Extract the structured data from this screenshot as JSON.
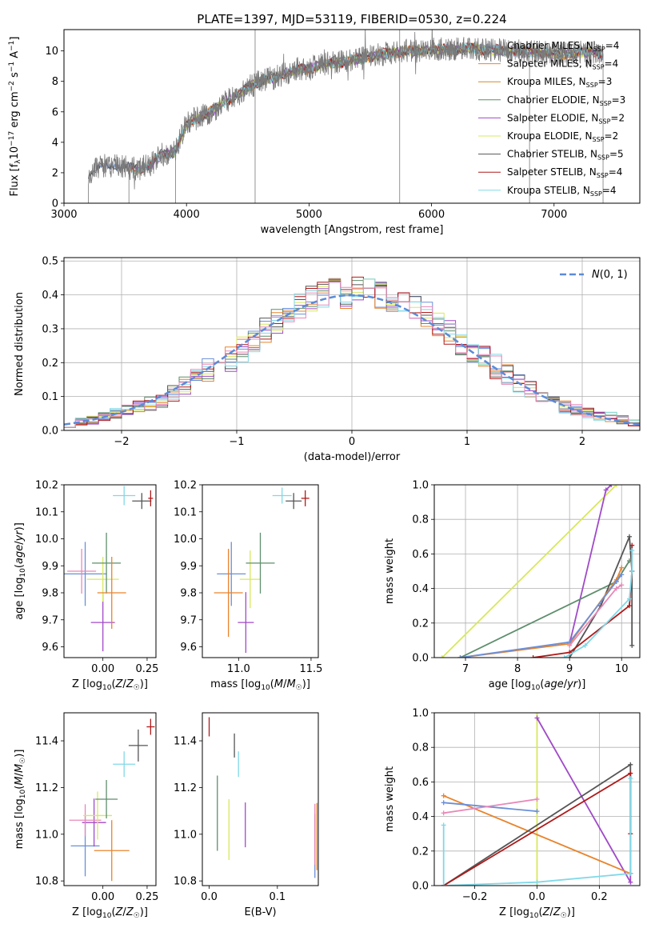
{
  "chart_data": [
    {
      "type": "line",
      "title": "PLATE=1397, MJD=53119, FIBERID=0530, z=0.224",
      "xlabel": "wavelength [Angstrom, rest frame]",
      "ylabel": "Flux [f_λ 10^-17 erg cm^-2 s^-1 A^-1]",
      "xlim": [
        3000,
        7700
      ],
      "ylim": [
        0,
        11.4
      ],
      "xticks": [
        "3000",
        "4000",
        "5000",
        "6000",
        "7000"
      ],
      "yticks": [
        "0",
        "2",
        "4",
        "6",
        "8",
        "10"
      ],
      "legend_position": "top-right",
      "x": [
        3200,
        3300,
        3400,
        3500,
        3600,
        3700,
        3800,
        3900,
        4000,
        4100,
        4200,
        4300,
        4400,
        4500,
        4600,
        4700,
        4800,
        4900,
        5000,
        5100,
        5200,
        5300,
        5400,
        5500,
        5600,
        5700,
        5800,
        5900,
        6000,
        6100,
        6200,
        6300,
        6400,
        6500,
        6600,
        6700,
        6800,
        6900,
        7000,
        7100,
        7200,
        7300,
        7400
      ],
      "y": [
        2.0,
        2.4,
        2.5,
        2.4,
        2.2,
        2.5,
        3.2,
        3.3,
        5.2,
        5.6,
        6.0,
        6.6,
        7.0,
        7.6,
        8.0,
        8.2,
        8.5,
        8.8,
        8.8,
        9.1,
        9.2,
        9.3,
        9.5,
        9.6,
        9.8,
        9.9,
        10.0,
        10.0,
        10.1,
        10.1,
        10.1,
        10.2,
        10.1,
        10.1,
        10.0,
        10.0,
        9.9,
        9.9,
        9.8,
        9.8,
        9.9,
        9.9,
        9.8
      ],
      "series": [
        {
          "name": "Chabrier MILES, N_SSP=4",
          "label_main": "Chabrier MILES, N",
          "label_sub": "SSP",
          "label_end": "=4",
          "color": "#6a8fd8"
        },
        {
          "name": "Salpeter MILES, N_SSP=4",
          "label_main": "Salpeter MILES, N",
          "label_sub": "SSP",
          "label_end": "=4",
          "color": "#e8842c"
        },
        {
          "name": "Kroupa MILES, N_SSP=3",
          "label_main": "Kroupa MILES, N",
          "label_sub": "SSP",
          "label_end": "=3",
          "color": "#d48a2c"
        },
        {
          "name": "Chabrier ELODIE, N_SSP=3",
          "label_main": "Chabrier ELODIE, N",
          "label_sub": "SSP",
          "label_end": "=3",
          "color": "#5e8e6c"
        },
        {
          "name": "Salpeter ELODIE, N_SSP=2",
          "label_main": "Salpeter ELODIE, N",
          "label_sub": "SSP",
          "label_end": "=2",
          "color": "#a04ac8"
        },
        {
          "name": "Kroupa ELODIE, N_SSP=2",
          "label_main": "Kroupa ELODIE, N",
          "label_sub": "SSP",
          "label_end": "=2",
          "color": "#d8e85c"
        },
        {
          "name": "Chabrier STELIB, N_SSP=5",
          "label_main": "Chabrier STELIB, N",
          "label_sub": "SSP",
          "label_end": "=5",
          "color": "#555555"
        },
        {
          "name": "Salpeter STELIB, N_SSP=4",
          "label_main": "Salpeter STELIB, N",
          "label_sub": "SSP",
          "label_end": "=4",
          "color": "#b01a1a"
        },
        {
          "name": "Kroupa STELIB, N_SSP=4",
          "label_main": "Kroupa STELIB, N",
          "label_sub": "SSP",
          "label_end": "=4",
          "color": "#80d8e8"
        }
      ]
    },
    {
      "type": "bar",
      "xlabel": "(data-model)/error",
      "ylabel": "Normed distribution",
      "xlim": [
        -2.5,
        2.5
      ],
      "ylim": [
        0,
        0.51
      ],
      "xticks": [
        "−2",
        "−1",
        "0",
        "1",
        "2"
      ],
      "yticks": [
        "0.0",
        "0.1",
        "0.2",
        "0.3",
        "0.4",
        "0.5"
      ],
      "grid": true,
      "legend_position": "top-right",
      "legend": "N(0,1)",
      "bin_edges": [
        -2.5,
        -2.4,
        -2.3,
        -2.2,
        -2.1,
        -2.0,
        -1.9,
        -1.8,
        -1.7,
        -1.6,
        -1.5,
        -1.4,
        -1.3,
        -1.2,
        -1.1,
        -1.0,
        -0.9,
        -0.8,
        -0.7,
        -0.6,
        -0.5,
        -0.4,
        -0.3,
        -0.2,
        -0.1,
        0.0,
        0.1,
        0.2,
        0.3,
        0.4,
        0.5,
        0.6,
        0.7,
        0.8,
        0.9,
        1.0,
        1.1,
        1.2,
        1.3,
        1.4,
        1.5,
        1.6,
        1.7,
        1.8,
        1.9,
        2.0,
        2.1,
        2.2,
        2.3,
        2.4,
        2.5
      ],
      "histogram_base": [
        0.02,
        0.025,
        0.03,
        0.04,
        0.05,
        0.06,
        0.07,
        0.08,
        0.09,
        0.11,
        0.13,
        0.15,
        0.18,
        0.2,
        0.21,
        0.24,
        0.27,
        0.3,
        0.32,
        0.34,
        0.37,
        0.39,
        0.4,
        0.41,
        0.4,
        0.42,
        0.41,
        0.4,
        0.39,
        0.38,
        0.36,
        0.34,
        0.31,
        0.29,
        0.26,
        0.23,
        0.21,
        0.19,
        0.17,
        0.14,
        0.12,
        0.1,
        0.08,
        0.07,
        0.06,
        0.05,
        0.045,
        0.04,
        0.03,
        0.025
      ]
    },
    {
      "type": "scatter",
      "xlabel": "Z [log10(Z/Z☉)]",
      "ylabel": "age [log10(age/yr)]",
      "xlim": [
        -0.22,
        0.3
      ],
      "ylim": [
        9.56,
        10.2
      ],
      "xticks": [
        "0.00",
        "0.25"
      ],
      "yticks": [
        "9.6",
        "9.7",
        "9.8",
        "9.9",
        "10.0",
        "10.1",
        "10.2"
      ],
      "points": [
        {
          "x": -0.1,
          "y": 9.87,
          "color": "#6a8fd8"
        },
        {
          "x": -0.12,
          "y": 9.88,
          "color": "#e888b8"
        },
        {
          "x": 0.0,
          "y": 9.69,
          "color": "#a04ac8"
        },
        {
          "x": 0.0,
          "y": 9.85,
          "color": "#d8e85c"
        },
        {
          "x": 0.02,
          "y": 9.91,
          "color": "#5e8e6c"
        },
        {
          "x": 0.05,
          "y": 9.8,
          "color": "#e8842c"
        },
        {
          "x": 0.12,
          "y": 10.16,
          "color": "#80d8e8"
        },
        {
          "x": 0.22,
          "y": 10.14,
          "color": "#555555"
        },
        {
          "x": 0.27,
          "y": 10.15,
          "color": "#b01a1a"
        }
      ]
    },
    {
      "type": "scatter",
      "xlabel": "mass [log10(M/M☉)]",
      "ylabel": "",
      "xlim": [
        10.75,
        11.55
      ],
      "ylim": [
        9.56,
        10.2
      ],
      "xticks": [
        "11.0",
        "11.5"
      ],
      "yticks": [
        "9.6",
        "9.7",
        "9.8",
        "9.9",
        "10.0",
        "10.1",
        "10.2"
      ],
      "points": [
        {
          "x": 10.95,
          "y": 9.87,
          "color": "#6a8fd8"
        },
        {
          "x": 10.93,
          "y": 9.8,
          "color": "#e8842c"
        },
        {
          "x": 11.05,
          "y": 9.69,
          "color": "#a04ac8"
        },
        {
          "x": 11.08,
          "y": 9.85,
          "color": "#d8e85c"
        },
        {
          "x": 11.15,
          "y": 9.91,
          "color": "#5e8e6c"
        },
        {
          "x": 11.3,
          "y": 10.16,
          "color": "#80d8e8"
        },
        {
          "x": 11.38,
          "y": 10.14,
          "color": "#555555"
        },
        {
          "x": 11.46,
          "y": 10.15,
          "color": "#b01a1a"
        }
      ]
    },
    {
      "type": "line",
      "xlabel": "age [log10(age/yr)]",
      "ylabel": "mass weight",
      "xlim": [
        6.4,
        10.35
      ],
      "ylim": [
        0,
        1.0
      ],
      "xticks": [
        "7",
        "8",
        "9",
        "10"
      ],
      "yticks": [
        "0.0",
        "0.2",
        "0.4",
        "0.6",
        "0.8",
        "1.0"
      ],
      "grid": true,
      "series": [
        {
          "color": "#d8e85c",
          "x": [
            6.55,
            9.9
          ],
          "y": [
            0.0,
            1.0
          ]
        },
        {
          "color": "#a04ac8",
          "x": [
            9.0,
            9.7,
            9.8
          ],
          "y": [
            0.08,
            0.97,
            1.0
          ]
        },
        {
          "color": "#5e8e6c",
          "x": [
            6.9,
            9.9,
            10.15
          ],
          "y": [
            0.0,
            0.44,
            0.56
          ]
        },
        {
          "color": "#555555",
          "x": [
            9.0,
            9.6,
            10.15,
            10.2,
            10.2
          ],
          "y": [
            0.0,
            0.3,
            0.7,
            0.5,
            0.07
          ]
        },
        {
          "color": "#e8842c",
          "x": [
            6.9,
            9.0,
            9.9,
            10.0
          ],
          "y": [
            0.0,
            0.08,
            0.45,
            0.52
          ]
        },
        {
          "color": "#6a8fd8",
          "x": [
            6.9,
            9.0,
            9.9,
            10.0
          ],
          "y": [
            0.0,
            0.09,
            0.44,
            0.48
          ]
        },
        {
          "color": "#e888b8",
          "x": [
            9.0,
            9.9,
            10.0
          ],
          "y": [
            0.07,
            0.4,
            0.42
          ]
        },
        {
          "color": "#b01a1a",
          "x": [
            8.3,
            9.0,
            10.15,
            10.2,
            10.2
          ],
          "y": [
            0.0,
            0.03,
            0.3,
            0.5,
            0.65
          ]
        },
        {
          "color": "#80d8e8",
          "x": [
            8.9,
            9.3,
            10.15,
            10.2,
            10.2
          ],
          "y": [
            0.0,
            0.07,
            0.34,
            0.5,
            0.62
          ]
        }
      ]
    },
    {
      "type": "scatter",
      "xlabel": "Z [log10(Z/Z☉)]",
      "ylabel": "mass [log10(M/M☉)]",
      "xlim": [
        -0.22,
        0.3
      ],
      "ylim": [
        10.78,
        11.52
      ],
      "xticks": [
        "0.00",
        "0.25"
      ],
      "yticks": [
        "10.8",
        "11.0",
        "11.2",
        "11.4"
      ],
      "points": [
        {
          "x": -0.1,
          "y": 10.95,
          "color": "#6a8fd8"
        },
        {
          "x": 0.05,
          "y": 10.93,
          "color": "#e8842c"
        },
        {
          "x": -0.05,
          "y": 11.05,
          "color": "#a04ac8"
        },
        {
          "x": -0.1,
          "y": 11.06,
          "color": "#e888b8"
        },
        {
          "x": -0.03,
          "y": 11.08,
          "color": "#d8e85c"
        },
        {
          "x": 0.02,
          "y": 11.15,
          "color": "#5e8e6c"
        },
        {
          "x": 0.12,
          "y": 11.3,
          "color": "#80d8e8"
        },
        {
          "x": 0.2,
          "y": 11.38,
          "color": "#555555"
        },
        {
          "x": 0.27,
          "y": 11.46,
          "color": "#b01a1a"
        }
      ]
    },
    {
      "type": "scatter",
      "xlabel": "E(B-V)",
      "ylabel": "",
      "xlim": [
        -0.01,
        0.16
      ],
      "ylim": [
        10.78,
        11.52
      ],
      "xticks": [
        "0.0",
        "0.1"
      ],
      "yticks": [
        "10.8",
        "11.0",
        "11.2",
        "11.4"
      ],
      "points": [
        {
          "x": 0.0,
          "y": 11.46,
          "color": "#b01a1a"
        },
        {
          "x": 0.037,
          "y": 11.38,
          "color": "#555555"
        },
        {
          "x": 0.043,
          "y": 11.3,
          "color": "#80d8e8"
        },
        {
          "x": 0.012,
          "y": 11.09,
          "color": "#5e8e6c"
        },
        {
          "x": 0.029,
          "y": 11.02,
          "color": "#d8e85c"
        },
        {
          "x": 0.053,
          "y": 11.04,
          "color": "#a04ac8"
        },
        {
          "x": 0.155,
          "y": 10.95,
          "color": "#6a8fd8"
        },
        {
          "x": 0.158,
          "y": 10.99,
          "color": "#e8842c"
        },
        {
          "x": 0.155,
          "y": 11.0,
          "color": "#e888b8"
        }
      ]
    },
    {
      "type": "line",
      "xlabel": "Z [log10(Z/Z☉)]",
      "ylabel": "mass weight",
      "xlim": [
        -0.33,
        0.33
      ],
      "ylim": [
        0,
        1.0
      ],
      "xticks": [
        "−0.2",
        "0.0",
        "0.2"
      ],
      "yticks": [
        "0.0",
        "0.2",
        "0.4",
        "0.6",
        "0.8",
        "1.0"
      ],
      "grid": true,
      "series": [
        {
          "color": "#d8e85c",
          "x": [
            0.0,
            0.0
          ],
          "y": [
            0.0,
            1.0
          ]
        },
        {
          "color": "#a04ac8",
          "x": [
            0.0,
            0.3,
            0.3
          ],
          "y": [
            0.97,
            0.02,
            0.07
          ]
        },
        {
          "color": "#e8842c",
          "x": [
            -0.3,
            0.3
          ],
          "y": [
            0.52,
            0.07
          ]
        },
        {
          "color": "#6a8fd8",
          "x": [
            -0.3,
            0.0
          ],
          "y": [
            0.48,
            0.43
          ]
        },
        {
          "color": "#e888b8",
          "x": [
            -0.3,
            0.0
          ],
          "y": [
            0.42,
            0.5
          ]
        },
        {
          "color": "#555555",
          "x": [
            -0.3,
            0.3,
            0.3
          ],
          "y": [
            0.0,
            0.7,
            0.07
          ]
        },
        {
          "color": "#b01a1a",
          "x": [
            -0.3,
            0.3,
            0.3
          ],
          "y": [
            0.0,
            0.65,
            0.3
          ]
        },
        {
          "color": "#80d8e8",
          "x": [
            -0.3,
            -0.3,
            0.0,
            0.3,
            0.3
          ],
          "y": [
            0.35,
            0.0,
            0.02,
            0.07,
            0.62
          ]
        }
      ]
    }
  ]
}
